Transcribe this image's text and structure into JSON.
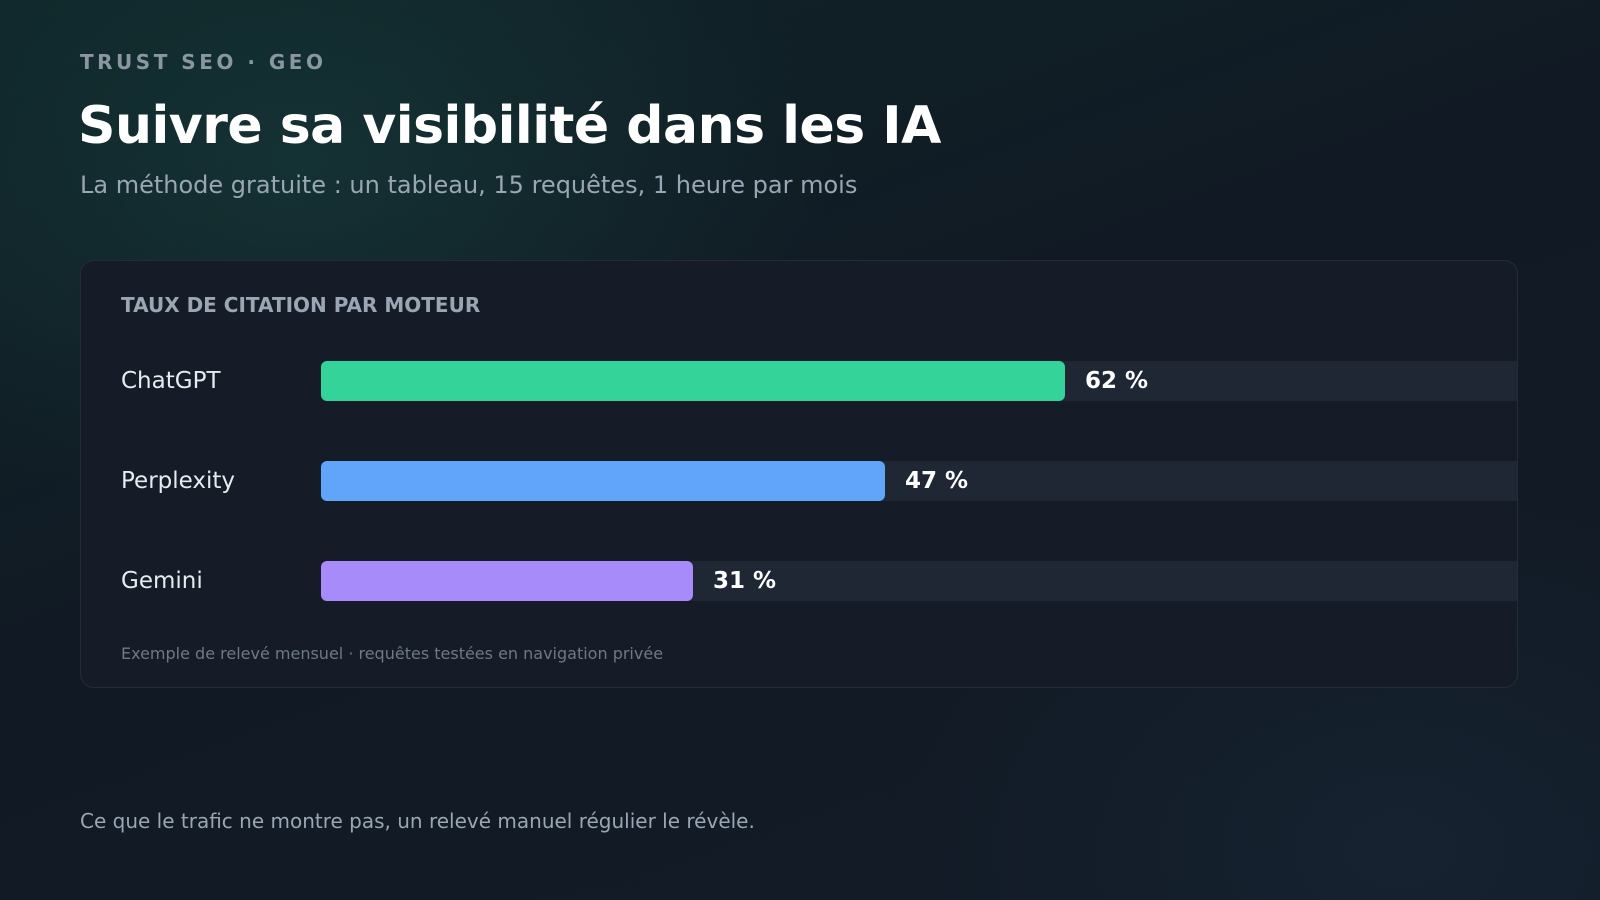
{
  "header": {
    "eyebrow": "TRUST SEO · GEO",
    "title": "Suivre sa visibilité dans les IA",
    "subtitle": "La méthode gratuite : un tableau, 15 requêtes, 1 heure par mois"
  },
  "card": {
    "note": "Exemple de relevé mensuel · requêtes testées en navigation privée"
  },
  "footer": {
    "text": "Ce que le trafic ne montre pas, un relevé manuel régulier le révèle."
  },
  "chart_data": {
    "type": "bar",
    "orientation": "horizontal",
    "title": "TAUX DE CITATION PAR MOTEUR",
    "categories": [
      "ChatGPT",
      "Perplexity",
      "Gemini"
    ],
    "values": [
      62,
      47,
      31
    ],
    "value_labels": [
      "62 %",
      "47 %",
      "31 %"
    ],
    "unit": "%",
    "xlim": [
      0,
      100
    ],
    "colors": [
      "#34d399",
      "#60a5fa",
      "#a78bfa"
    ],
    "track_color": "#1e2733",
    "grid": false,
    "legend": "none"
  }
}
